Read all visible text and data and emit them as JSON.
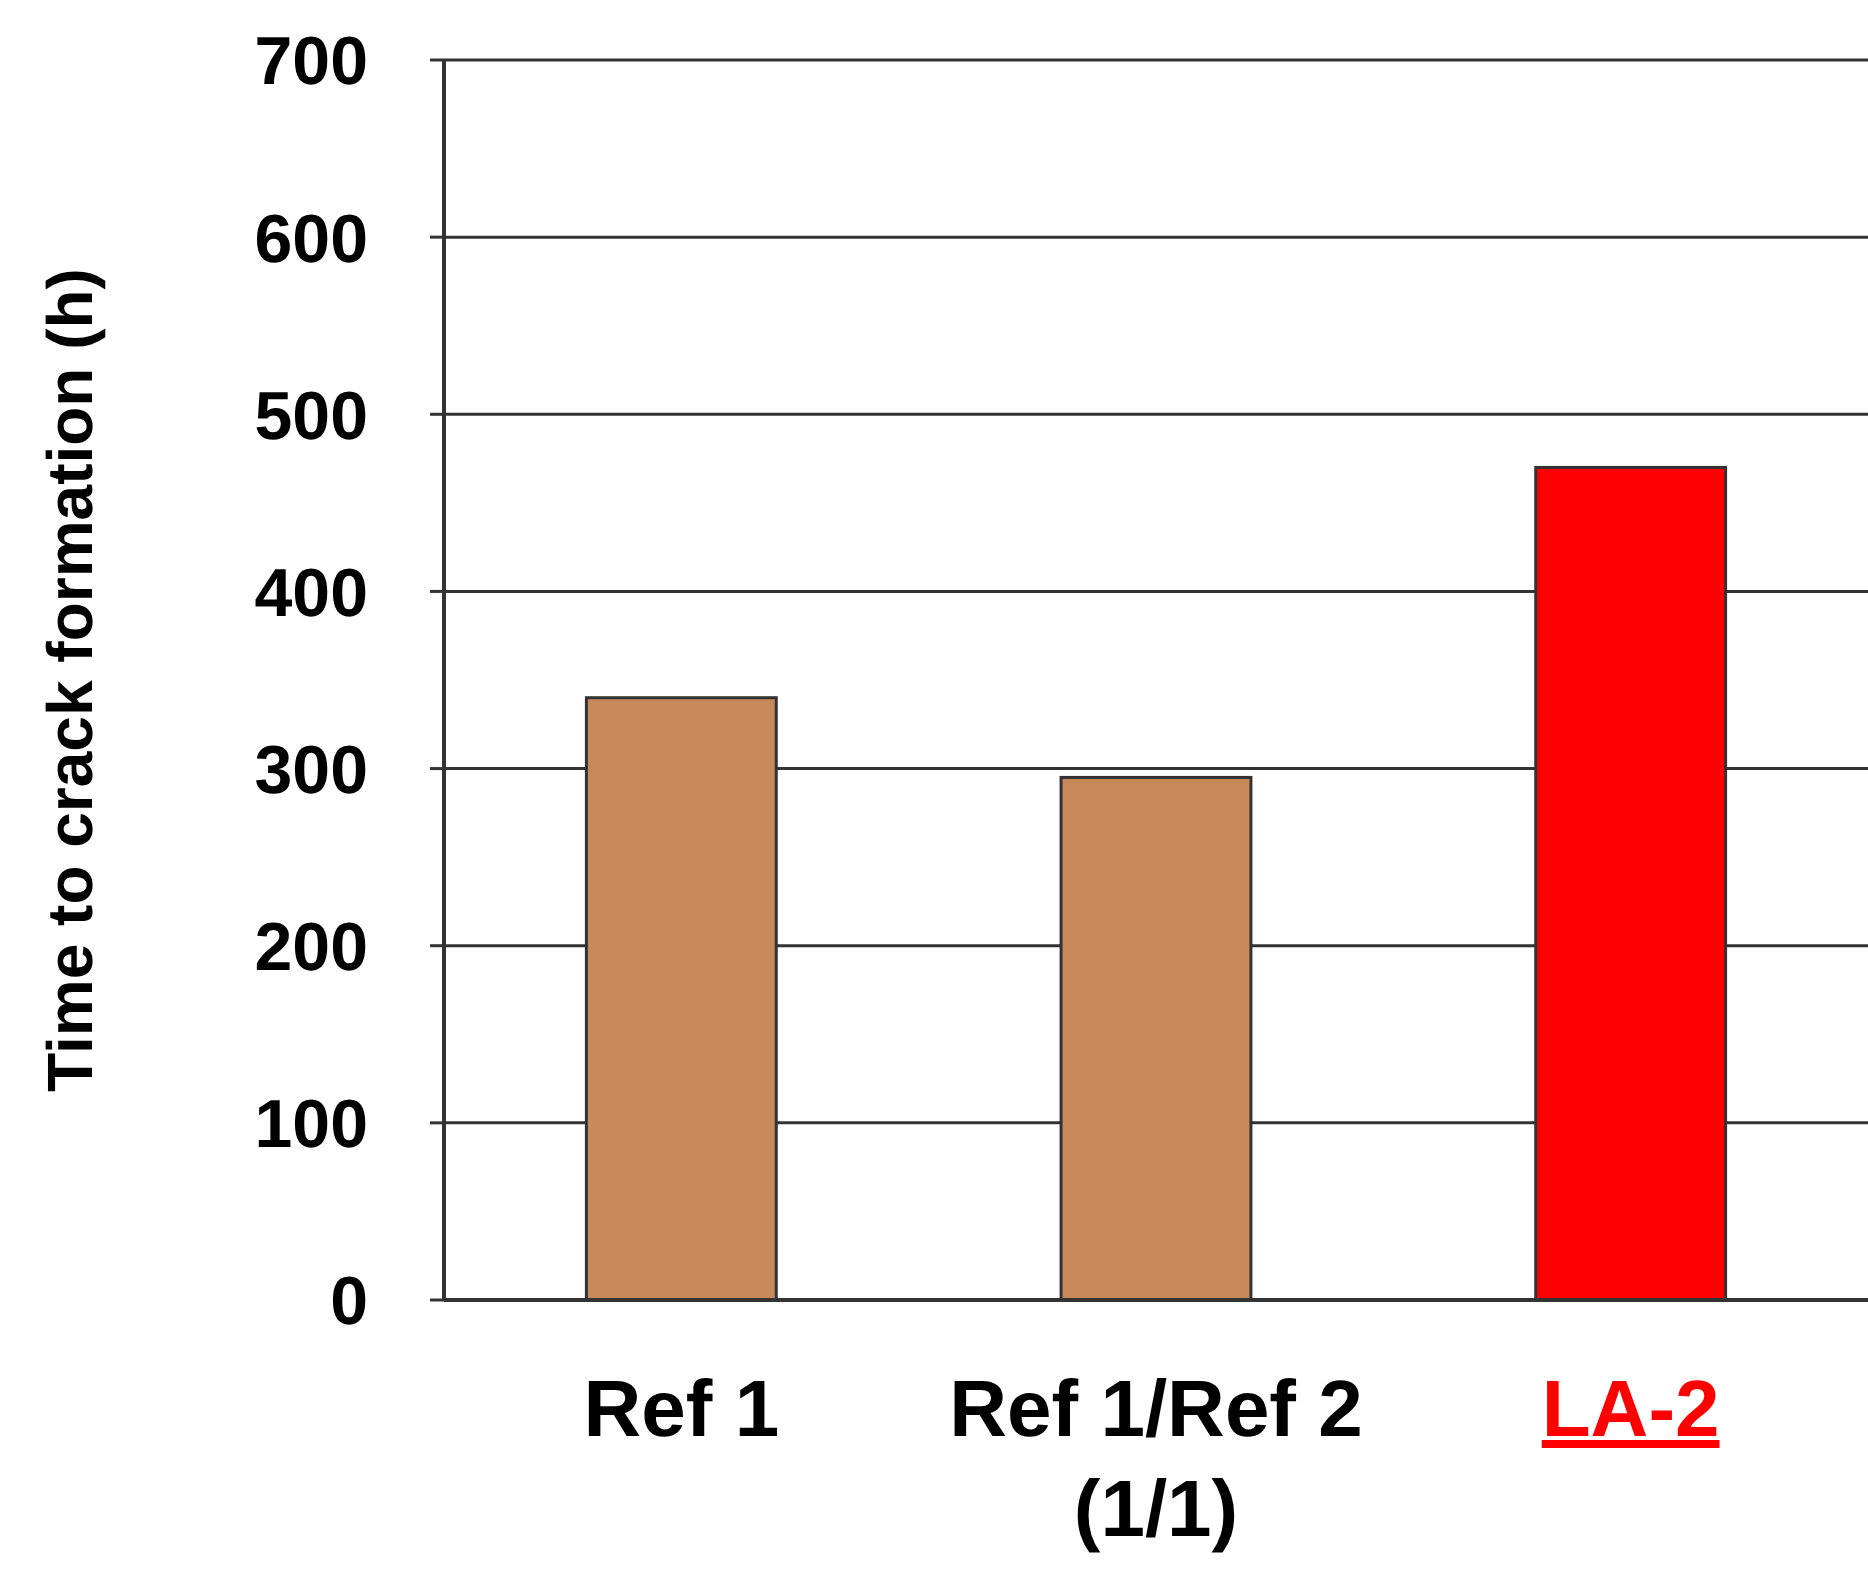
{
  "chart_data": {
    "type": "bar",
    "ylabel": "Time to crack formation (h)",
    "categories": [
      "Ref 1",
      "Ref 1/Ref 2\n(1/1)",
      "LA-2"
    ],
    "values": [
      340,
      295,
      470
    ],
    "colors": [
      "#c8895a",
      "#c8895a",
      "#ff0000"
    ],
    "ylim": [
      0,
      700
    ],
    "yticks": [
      0,
      100,
      200,
      300,
      400,
      500,
      600,
      700
    ],
    "grid": "y"
  }
}
